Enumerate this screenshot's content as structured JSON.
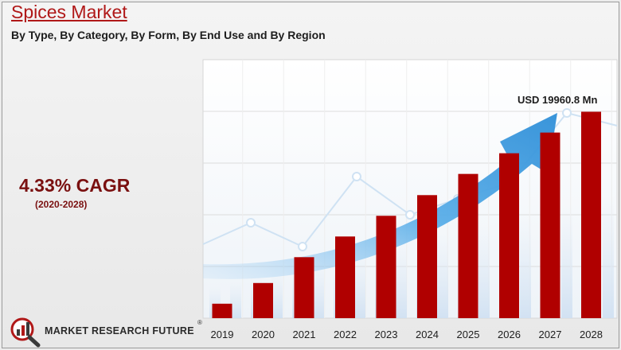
{
  "header": {
    "title": "Spices Market",
    "subtitle": "By Type, By Category, By Form, By End Use and By Region"
  },
  "cagr": {
    "value": "4.33% CAGR",
    "period": "(2020-2028)"
  },
  "brand": {
    "name": "MARKET RESEARCH FUTURE",
    "trademark": "®"
  },
  "colors": {
    "bar": "#b00000",
    "arrow": "#3a9be0",
    "title": "#b01818",
    "cagr": "#7a1010"
  },
  "chart_data": {
    "type": "bar",
    "categories": [
      "2019",
      "2020",
      "2021",
      "2022",
      "2023",
      "2024",
      "2025",
      "2026",
      "2027",
      "2028"
    ],
    "values": [
      1400,
      3400,
      5900,
      7900,
      9900,
      11900,
      13950,
      15950,
      17950,
      19960.8
    ],
    "ylim": [
      0,
      20000
    ],
    "annotation": "USD 19960.8 Mn",
    "grid": true,
    "legend": "none"
  }
}
